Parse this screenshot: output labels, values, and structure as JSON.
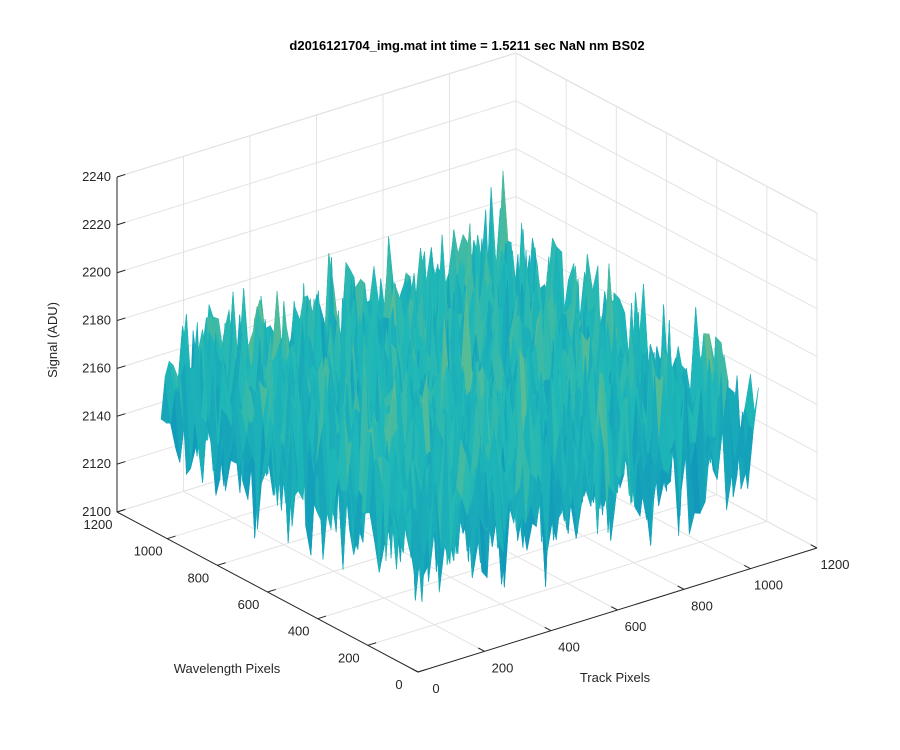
{
  "chart_data": {
    "type": "surface",
    "title": "d2016121704_img.mat int time = 1.5211 sec  NaN nm BS02",
    "xlabel": "Track Pixels",
    "ylabel": "Wavelength Pixels",
    "zlabel": "Signal (ADU)",
    "xlim": [
      0,
      1200
    ],
    "ylim": [
      0,
      1200
    ],
    "zlim": [
      2100,
      2240
    ],
    "x_ticks": [
      "0",
      "200",
      "400",
      "600",
      "800",
      "1000",
      "1200"
    ],
    "y_ticks": [
      "0",
      "200",
      "400",
      "600",
      "800",
      "1000",
      "1200"
    ],
    "z_ticks": [
      "2100",
      "2120",
      "2140",
      "2160",
      "2180",
      "2200",
      "2220",
      "2240"
    ],
    "grid": true,
    "colormap": "parula",
    "surface_extent": {
      "x": [
        0,
        1024
      ],
      "y": [
        0,
        1024
      ]
    },
    "surface_mean_signal": 2160,
    "surface_signal_range": [
      2110,
      2225
    ],
    "colors": {
      "low": "#0072bd",
      "mid": "#1fb8b8",
      "high": "#e6c53d"
    }
  }
}
